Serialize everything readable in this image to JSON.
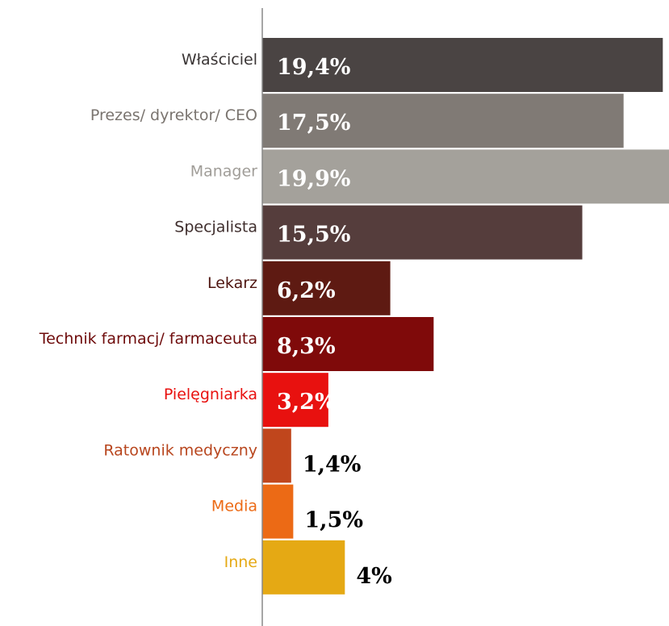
{
  "chart_data": {
    "type": "barh",
    "categories": [
      "Właściciel",
      "Prezes/ dyrektor/ CEO",
      "Manager",
      "Specjalista",
      "Lekarz",
      "Technik farmacj/ farmaceuta",
      "Pielęgniarka",
      "Ratownik medyczny",
      "Media",
      "Inne"
    ],
    "values": [
      19.4,
      17.5,
      19.9,
      15.5,
      6.2,
      8.3,
      3.2,
      1.4,
      1.5,
      4
    ],
    "value_labels": [
      "19,4%",
      "17,5%",
      "19,9%",
      "15,5%",
      "6,2%",
      "8,3%",
      "3,2%",
      "1,4%",
      "1,5%",
      "4%"
    ],
    "colors": [
      "#4a4443",
      "#807a75",
      "#a4a19b",
      "#553d3c",
      "#5e1a12",
      "#7f0a0a",
      "#e8110f",
      "#c0461c",
      "#ec6a15",
      "#e5a914"
    ],
    "label_colors": [
      "#3a3535",
      "#7a746f",
      "#a09d98",
      "#3f2e2d",
      "#4e1510",
      "#6e0b0b",
      "#e8110f",
      "#b8461e",
      "#ec6a15",
      "#e5a914"
    ],
    "value_label_colors": [
      "#ffffff",
      "#ffffff",
      "#ffffff",
      "#ffffff",
      "#ffffff",
      "#ffffff",
      "#ffffff",
      "#000000",
      "#000000",
      "#000000"
    ],
    "xlim": [
      0,
      19.7
    ]
  }
}
